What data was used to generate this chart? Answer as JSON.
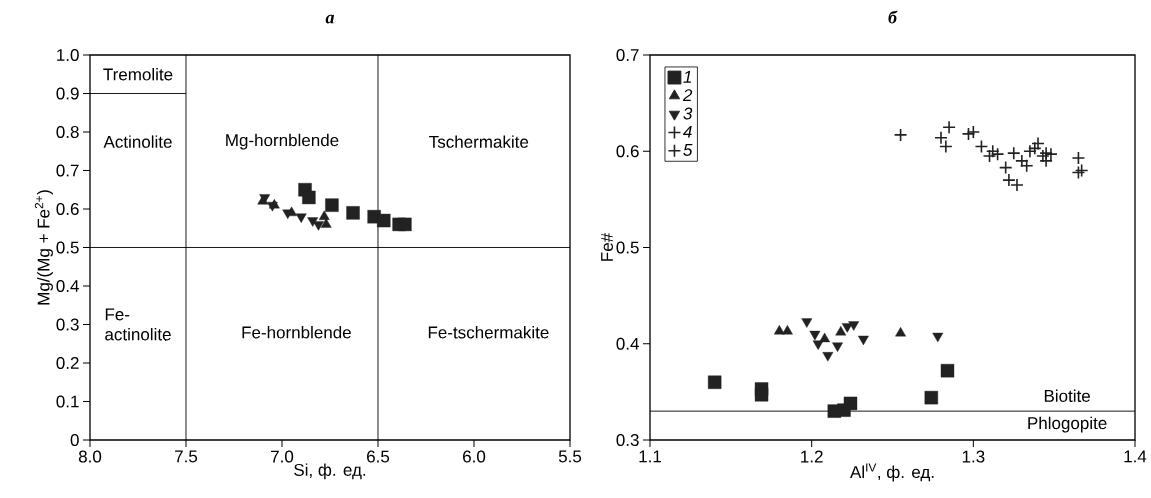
{
  "chart_data": [
    {
      "type": "scatter",
      "title": "а",
      "xlabel": "Si, ф. ед.",
      "ylabel": "Mg/(Mg + Fe$^{2+}$)",
      "xlim": [
        8.0,
        5.5
      ],
      "ylim": [
        0,
        1.0
      ],
      "xticks": [
        {
          "value": 8,
          "label": "8.0"
        },
        7.5,
        {
          "value": 7,
          "label": "7.0"
        },
        6.5,
        {
          "value": 6,
          "label": "6.0"
        },
        5.5
      ],
      "yticks": [
        0,
        0.1,
        0.2,
        0.3,
        0.4,
        0.5,
        0.6,
        0.7,
        0.8,
        0.9,
        {
          "value": 1,
          "label": "1.0"
        }
      ],
      "series": [
        {
          "marker": "square",
          "color": "#222222",
          "x": [
            6.88,
            6.86,
            6.74,
            6.63,
            6.52,
            6.47,
            6.39,
            6.36
          ],
          "values": [
            0.65,
            0.63,
            0.61,
            0.59,
            0.58,
            0.57,
            0.56,
            0.56
          ]
        },
        {
          "marker": "triangle",
          "color": "#222222",
          "x": [
            7.1,
            7.04,
            6.95,
            6.78,
            6.77
          ],
          "values": [
            0.62,
            0.61,
            0.59,
            0.58,
            0.56
          ]
        },
        {
          "marker": "triangle_down",
          "color": "#222222",
          "x": [
            7.09,
            7.05,
            6.97,
            6.9,
            6.84,
            6.81
          ],
          "values": [
            0.63,
            0.61,
            0.59,
            0.58,
            0.57,
            0.56
          ]
        },
        {
          "type": "line",
          "marker": "none",
          "color": "#000000",
          "x": [
            8.0,
            7.5
          ],
          "values": [
            0.9,
            0.9
          ]
        }
      ],
      "ref_lines": [
        {
          "axis": "x",
          "value": 7.5,
          "color": "#000000"
        },
        {
          "axis": "x",
          "value": 6.5,
          "color": "#000000"
        },
        {
          "axis": "y",
          "value": 0.5,
          "color": "#000000"
        }
      ],
      "annotations": [
        "Tremolite",
        "Actinolite",
        "Mg-hornblende",
        "Tschermakite",
        "Fe-actinolite",
        "Fe-hornblende",
        "Fe-tschermakite"
      ]
    },
    {
      "type": "scatter",
      "title": "б",
      "xlabel": "Al$^{IV}$, ф. ед.",
      "ylabel": "Fe#",
      "xlim": [
        1.1,
        1.4
      ],
      "ylim": [
        0.3,
        0.7
      ],
      "xticks": [
        1.1,
        1.2,
        1.3,
        1.4
      ],
      "yticks": [
        0.3,
        0.4,
        0.5,
        0.6,
        0.7
      ],
      "legend": "top left",
      "series": [
        {
          "name": "1",
          "marker": "square",
          "color": "#222222",
          "x": [
            1.14,
            1.169,
            1.169,
            1.214,
            1.22,
            1.224,
            1.274,
            1.284
          ],
          "values": [
            0.36,
            0.353,
            0.347,
            0.33,
            0.331,
            0.338,
            0.344,
            0.372
          ]
        },
        {
          "name": "2",
          "marker": "triangle",
          "color": "#222222",
          "x": [
            1.18,
            1.185,
            1.208,
            1.218,
            1.255
          ],
          "values": [
            0.413,
            0.413,
            0.405,
            0.412,
            0.411
          ]
        },
        {
          "name": "3",
          "marker": "triangle_down",
          "color": "#222222",
          "x": [
            1.197,
            1.202,
            1.204,
            1.21,
            1.216,
            1.222,
            1.226,
            1.232,
            1.278
          ],
          "values": [
            0.423,
            0.41,
            0.4,
            0.388,
            0.398,
            0.418,
            0.42,
            0.405,
            0.408
          ]
        },
        {
          "name": "4",
          "marker": "cross",
          "color": "#222222",
          "x": [
            1.255,
            1.28,
            1.283,
            1.305,
            1.31,
            1.315,
            1.32,
            1.322,
            1.327,
            1.33,
            1.335,
            1.34,
            1.343,
            1.345,
            1.348,
            1.365
          ],
          "values": [
            0.617,
            0.614,
            0.605,
            0.605,
            0.595,
            0.597,
            0.583,
            0.57,
            0.565,
            0.59,
            0.6,
            0.608,
            0.595,
            0.59,
            0.597,
            0.578
          ]
        },
        {
          "name": "5",
          "marker": "cross",
          "color": "#222222",
          "x": [
            1.285,
            1.297,
            1.3,
            1.312,
            1.325,
            1.333,
            1.338,
            1.345,
            1.365,
            1.367
          ],
          "values": [
            0.625,
            0.618,
            0.62,
            0.6,
            0.598,
            0.585,
            0.603,
            0.598,
            0.593,
            0.58
          ]
        }
      ],
      "ref_lines": [
        {
          "axis": "y",
          "value": 0.33,
          "color": "#000000"
        }
      ],
      "annotations": [
        "Biotite",
        "Phlogopite"
      ]
    }
  ]
}
